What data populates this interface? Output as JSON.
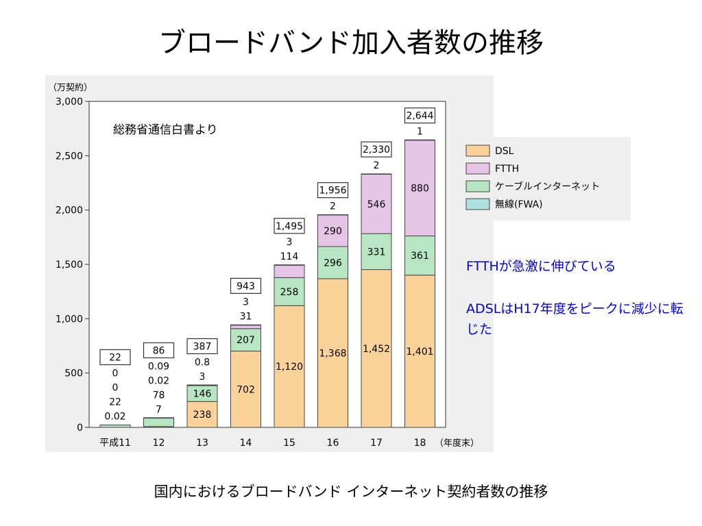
{
  "slide": {
    "title": "ブロードバンド加入者数の推移",
    "caption": "国内におけるブロードバンド インターネット契約者数の推移",
    "notes": [
      "FTTHが急激に伸びている",
      "ADSLはH17年度をピークに減少に転じた"
    ]
  },
  "chart_data": {
    "type": "bar",
    "stacked": true,
    "unit_label": "（万契約）",
    "x_unit_label": "（年度末）",
    "source_note": "総務省通信白書より",
    "categories": [
      "平成11",
      "12",
      "13",
      "14",
      "15",
      "16",
      "17",
      "18"
    ],
    "ylim": [
      0,
      3000
    ],
    "yticks": [
      0,
      500,
      1000,
      1500,
      2000,
      2500,
      3000
    ],
    "ytick_labels": [
      "0",
      "500",
      "1,000",
      "1,500",
      "2,000",
      "2,500",
      "3,000"
    ],
    "series": [
      {
        "name": "DSL",
        "color": "#fbd39a",
        "values": [
          0.02,
          7,
          238,
          702,
          1120,
          1368,
          1452,
          1401
        ]
      },
      {
        "name": "ケーブルインターネット",
        "color": "#b8e6c2",
        "values": [
          22,
          78,
          146,
          207,
          258,
          296,
          331,
          361
        ]
      },
      {
        "name": "FTTH",
        "color": "#e6c4e8",
        "values": [
          0,
          0.02,
          3,
          31,
          114,
          290,
          546,
          880
        ]
      },
      {
        "name": "無線(FWA)",
        "color": "#aee0e0",
        "values": [
          0,
          0.09,
          0.8,
          3,
          3,
          2,
          2,
          1
        ]
      }
    ],
    "totals": [
      "22",
      "86",
      "387",
      "943",
      "1,495",
      "1,956",
      "2,330",
      "2,644"
    ],
    "value_labels": [
      [
        "0.02",
        "22",
        "0",
        "0"
      ],
      [
        "7",
        "78",
        "0.02",
        "0.09"
      ],
      [
        "238",
        "146",
        "3",
        "0.8"
      ],
      [
        "702",
        "207",
        "31",
        "3"
      ],
      [
        "1,120",
        "258",
        "114",
        "3"
      ],
      [
        "1,368",
        "296",
        "290",
        "2"
      ],
      [
        "1,452",
        "331",
        "546",
        "2"
      ],
      [
        "1,401",
        "361",
        "880",
        "1"
      ]
    ],
    "legend_position": "right"
  }
}
